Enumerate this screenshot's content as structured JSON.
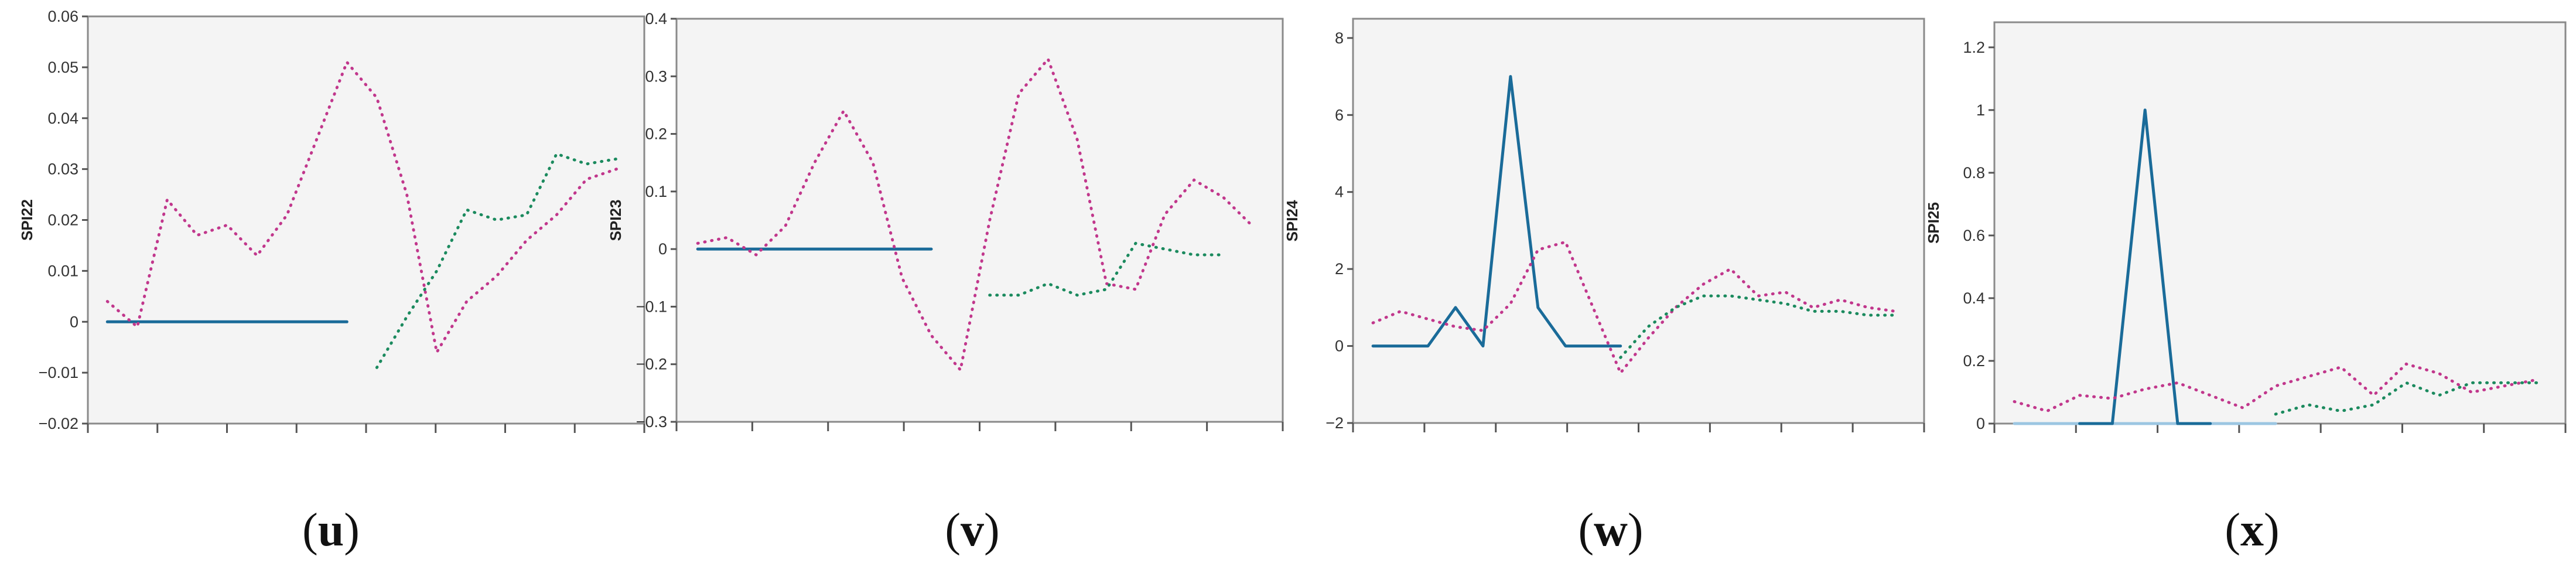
{
  "colors": {
    "solid": "#1a6b99",
    "pink": "#c1378c",
    "green": "#1b8a5e",
    "light_blue": "#9cc6e2"
  },
  "chart_data": [
    {
      "type": "line",
      "ylabel": "SPI22",
      "ylim": [
        -0.02,
        0.06
      ],
      "yticks": [
        -0.02,
        -0.01,
        0,
        0.01,
        0.02,
        0.03,
        0.04,
        0.05,
        0.06
      ],
      "ytick_labels": [
        "−0.02",
        "−0.01",
        "0",
        "0.01",
        "0.02",
        "0.03",
        "0.04",
        "0.05",
        "0.06"
      ],
      "x_ticks_count": 8,
      "caption": "u",
      "series": [
        {
          "style": "solid",
          "color": "#1a6b99",
          "points": [
            [
              0,
              0
            ],
            [
              1,
              0
            ],
            [
              2,
              0
            ],
            [
              3,
              0
            ],
            [
              4,
              0
            ],
            [
              5,
              0
            ],
            [
              6,
              0
            ],
            [
              7,
              0
            ],
            [
              8,
              0
            ]
          ]
        },
        {
          "style": "dotted",
          "color": "#c1378c",
          "points": [
            [
              0,
              0.004
            ],
            [
              1,
              -0.001
            ],
            [
              2,
              0.024
            ],
            [
              3,
              0.017
            ],
            [
              4,
              0.019
            ],
            [
              5,
              0.013
            ],
            [
              6,
              0.021
            ],
            [
              7,
              0.036
            ],
            [
              8,
              0.051
            ],
            [
              9,
              0.044
            ],
            [
              10,
              0.025
            ],
            [
              11,
              -0.006
            ],
            [
              12,
              0.004
            ],
            [
              13,
              0.009
            ],
            [
              14,
              0.016
            ],
            [
              15,
              0.021
            ],
            [
              16,
              0.028
            ],
            [
              17,
              0.03
            ]
          ]
        },
        {
          "style": "dotted",
          "color": "#1b8a5e",
          "points": [
            [
              9,
              -0.009
            ],
            [
              10,
              0.001
            ],
            [
              11,
              0.01
            ],
            [
              12,
              0.022
            ],
            [
              13,
              0.02
            ],
            [
              14,
              0.021
            ],
            [
              15,
              0.033
            ],
            [
              16,
              0.031
            ],
            [
              17,
              0.032
            ]
          ]
        }
      ]
    },
    {
      "type": "line",
      "ylabel": "SPI23",
      "ylim": [
        -0.3,
        0.4
      ],
      "yticks": [
        -0.3,
        -0.2,
        -0.1,
        0,
        0.1,
        0.2,
        0.3,
        0.4
      ],
      "ytick_labels": [
        "−0.3",
        "−0.2",
        "−0.1",
        "0",
        "0.1",
        "0.2",
        "0.3",
        "0.4"
      ],
      "x_ticks_count": 8,
      "caption": "v",
      "series": [
        {
          "style": "solid",
          "color": "#1a6b99",
          "points": [
            [
              0,
              0
            ],
            [
              1,
              0
            ],
            [
              2,
              0
            ],
            [
              3,
              0
            ],
            [
              4,
              0
            ],
            [
              5,
              0
            ],
            [
              6,
              0
            ],
            [
              7,
              0
            ],
            [
              8,
              0
            ]
          ]
        },
        {
          "style": "dotted",
          "color": "#c1378c",
          "points": [
            [
              0,
              0.01
            ],
            [
              1,
              0.02
            ],
            [
              2,
              -0.01
            ],
            [
              3,
              0.04
            ],
            [
              4,
              0.15
            ],
            [
              5,
              0.24
            ],
            [
              6,
              0.15
            ],
            [
              7,
              -0.05
            ],
            [
              8,
              -0.15
            ],
            [
              9,
              -0.21
            ],
            [
              10,
              0.05
            ],
            [
              11,
              0.27
            ],
            [
              12,
              0.33
            ],
            [
              13,
              0.19
            ],
            [
              14,
              -0.06
            ],
            [
              15,
              -0.07
            ],
            [
              16,
              0.06
            ],
            [
              17,
              0.12
            ],
            [
              18,
              0.09
            ],
            [
              19,
              0.04
            ]
          ]
        },
        {
          "style": "dotted",
          "color": "#1b8a5e",
          "points": [
            [
              10,
              -0.08
            ],
            [
              11,
              -0.08
            ],
            [
              12,
              -0.06
            ],
            [
              13,
              -0.08
            ],
            [
              14,
              -0.07
            ],
            [
              15,
              0.01
            ],
            [
              16,
              0.0
            ],
            [
              17,
              -0.01
            ],
            [
              18,
              -0.01
            ]
          ]
        }
      ]
    },
    {
      "type": "line",
      "ylabel": "SPI24",
      "ylim": [
        -2,
        8.5
      ],
      "yticks": [
        -2,
        0,
        2,
        4,
        6,
        8
      ],
      "ytick_labels": [
        "−2",
        "0",
        "2",
        "4",
        "6",
        "8"
      ],
      "x_ticks_count": 8,
      "caption": "w",
      "series": [
        {
          "style": "solid",
          "color": "#1a6b99",
          "points": [
            [
              0,
              0
            ],
            [
              1,
              0
            ],
            [
              2,
              0
            ],
            [
              3,
              1
            ],
            [
              4,
              0
            ],
            [
              5,
              7
            ],
            [
              6,
              1
            ],
            [
              7,
              0
            ],
            [
              8,
              0
            ],
            [
              9,
              0
            ]
          ]
        },
        {
          "style": "dotted",
          "color": "#c1378c",
          "points": [
            [
              0,
              0.6
            ],
            [
              1,
              0.9
            ],
            [
              2,
              0.7
            ],
            [
              3,
              0.5
            ],
            [
              4,
              0.4
            ],
            [
              5,
              1.1
            ],
            [
              6,
              2.5
            ],
            [
              7,
              2.7
            ],
            [
              8,
              1.0
            ],
            [
              9,
              -0.7
            ],
            [
              10,
              0.2
            ],
            [
              11,
              1.0
            ],
            [
              12,
              1.6
            ],
            [
              13,
              2.0
            ],
            [
              14,
              1.3
            ],
            [
              15,
              1.4
            ],
            [
              16,
              1.0
            ],
            [
              17,
              1.2
            ],
            [
              18,
              1.0
            ],
            [
              19,
              0.9
            ]
          ]
        },
        {
          "style": "dotted",
          "color": "#1b8a5e",
          "points": [
            [
              9,
              -0.3
            ],
            [
              10,
              0.5
            ],
            [
              11,
              1.0
            ],
            [
              12,
              1.3
            ],
            [
              13,
              1.3
            ],
            [
              14,
              1.2
            ],
            [
              15,
              1.1
            ],
            [
              16,
              0.9
            ],
            [
              17,
              0.9
            ],
            [
              18,
              0.8
            ],
            [
              19,
              0.8
            ]
          ]
        }
      ]
    },
    {
      "type": "line",
      "ylabel": "SPI25",
      "ylim": [
        0,
        1.28
      ],
      "yticks": [
        0,
        0.2,
        0.4,
        0.6,
        0.8,
        1,
        1.2
      ],
      "ytick_labels": [
        "0",
        "0.2",
        "0.4",
        "0.6",
        "0.8",
        "1",
        "1.2"
      ],
      "x_ticks_count": 7,
      "caption": "x",
      "series": [
        {
          "style": "solid",
          "color": "#9cc6e2",
          "points": [
            [
              0,
              0
            ],
            [
              1,
              0
            ],
            [
              2,
              0
            ],
            [
              3,
              0
            ],
            [
              4,
              0
            ],
            [
              5,
              0
            ],
            [
              6,
              0
            ],
            [
              7,
              0
            ],
            [
              8,
              0
            ]
          ]
        },
        {
          "style": "solid",
          "color": "#1a6b99",
          "points": [
            [
              2,
              0
            ],
            [
              3,
              0
            ],
            [
              4,
              1
            ],
            [
              5,
              0
            ],
            [
              6,
              0
            ]
          ]
        },
        {
          "style": "dotted",
          "color": "#c1378c",
          "points": [
            [
              0,
              0.07
            ],
            [
              1,
              0.04
            ],
            [
              2,
              0.09
            ],
            [
              3,
              0.08
            ],
            [
              4,
              0.11
            ],
            [
              5,
              0.13
            ],
            [
              6,
              0.09
            ],
            [
              7,
              0.05
            ],
            [
              8,
              0.12
            ],
            [
              9,
              0.15
            ],
            [
              10,
              0.18
            ],
            [
              11,
              0.09
            ],
            [
              12,
              0.19
            ],
            [
              13,
              0.16
            ],
            [
              14,
              0.1
            ],
            [
              15,
              0.12
            ],
            [
              16,
              0.14
            ]
          ]
        },
        {
          "style": "dotted",
          "color": "#1b8a5e",
          "points": [
            [
              8,
              0.03
            ],
            [
              9,
              0.06
            ],
            [
              10,
              0.04
            ],
            [
              11,
              0.06
            ],
            [
              12,
              0.13
            ],
            [
              13,
              0.09
            ],
            [
              14,
              0.13
            ],
            [
              15,
              0.13
            ],
            [
              16,
              0.13
            ]
          ]
        }
      ]
    }
  ]
}
